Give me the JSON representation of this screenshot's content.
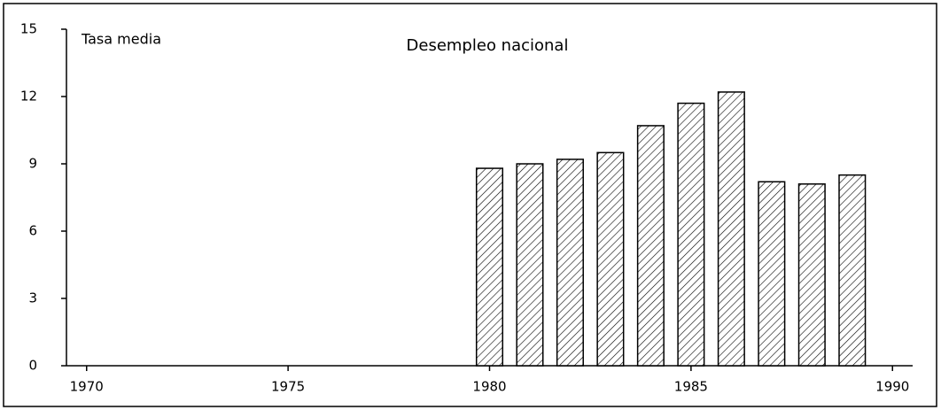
{
  "chart_data": {
    "type": "bar",
    "title": "Desempleo nacional",
    "y_label": "Tasa media",
    "x": [
      1980,
      1981,
      1982,
      1983,
      1984,
      1985,
      1986,
      1987,
      1988,
      1989
    ],
    "values": [
      8.8,
      9.0,
      9.2,
      9.5,
      10.7,
      11.7,
      12.2,
      8.2,
      8.1,
      8.5
    ],
    "color": "#000000",
    "xlim": [
      1969.5,
      1990.5
    ],
    "xticks": [
      1970,
      1975,
      1980,
      1985,
      1990
    ],
    "ylim": [
      0,
      15
    ],
    "yticks": [
      0,
      3,
      6,
      9,
      12,
      15
    ],
    "grid": false
  }
}
